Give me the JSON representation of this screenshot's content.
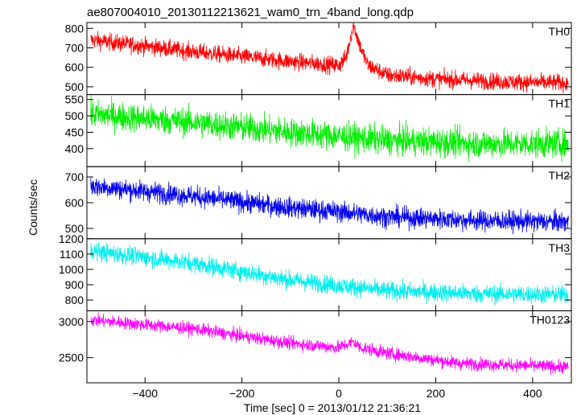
{
  "chart_data": {
    "type": "line",
    "title": "ae807004010_20130112213621_wam0_trn_4band_long.qdp",
    "xlabel": "Time [sec] 0 = 2013/01/12 21:36:21",
    "ylabel": "Counts/sec",
    "xlim": [
      -520,
      480
    ],
    "xticks": [
      "−400",
      "−200",
      "0",
      "200",
      "400"
    ],
    "xtick_values": [
      -400,
      -200,
      0,
      200,
      400
    ],
    "grid": false,
    "panels": [
      {
        "name": "TH0",
        "color": "#ff0000",
        "ylim": [
          460,
          830
        ],
        "yticks": [
          "500",
          "600",
          "700",
          "800"
        ],
        "ytick_values": [
          500,
          600,
          700,
          800
        ],
        "trend": [
          [
            -510,
            740
          ],
          [
            -300,
            680
          ],
          [
            -100,
            630
          ],
          [
            0,
            610
          ],
          [
            15,
            650
          ],
          [
            30,
            820
          ],
          [
            45,
            700
          ],
          [
            60,
            610
          ],
          [
            100,
            560
          ],
          [
            200,
            540
          ],
          [
            350,
            525
          ],
          [
            470,
            520
          ]
        ],
        "noise": 22
      },
      {
        "name": "TH1",
        "color": "#00ee00",
        "ylim": [
          345,
          565
        ],
        "yticks": [
          "400",
          "450",
          "500",
          "550"
        ],
        "ytick_values": [
          400,
          450,
          500,
          550
        ],
        "trend": [
          [
            -510,
            505
          ],
          [
            -300,
            480
          ],
          [
            -100,
            450
          ],
          [
            100,
            425
          ],
          [
            300,
            415
          ],
          [
            470,
            415
          ]
        ],
        "noise": 22
      },
      {
        "name": "TH2",
        "color": "#0000ee",
        "ylim": [
          460,
          740
        ],
        "yticks": [
          "500",
          "600",
          "700"
        ],
        "ytick_values": [
          500,
          600,
          700
        ],
        "trend": [
          [
            -510,
            665
          ],
          [
            -300,
            625
          ],
          [
            -100,
            580
          ],
          [
            0,
            565
          ],
          [
            100,
            545
          ],
          [
            300,
            530
          ],
          [
            470,
            525
          ]
        ],
        "noise": 20
      },
      {
        "name": "TH3",
        "color": "#00eeee",
        "ylim": [
          730,
          1200
        ],
        "yticks": [
          "800",
          "900",
          "1000",
          "1100",
          "1200"
        ],
        "ytick_values": [
          800,
          900,
          1000,
          1100,
          1200
        ],
        "trend": [
          [
            -510,
            1120
          ],
          [
            -300,
            1040
          ],
          [
            -100,
            930
          ],
          [
            100,
            860
          ],
          [
            300,
            840
          ],
          [
            470,
            835
          ]
        ],
        "noise": 30
      },
      {
        "name": "TH0123",
        "color": "#ff00ff",
        "ylim": [
          2150,
          3150
        ],
        "yticks": [
          "2500",
          "3000"
        ],
        "ytick_values": [
          2500,
          3000
        ],
        "trend": [
          [
            -510,
            3020
          ],
          [
            -300,
            2900
          ],
          [
            -100,
            2700
          ],
          [
            0,
            2640
          ],
          [
            20,
            2690
          ],
          [
            30,
            2720
          ],
          [
            45,
            2640
          ],
          [
            100,
            2560
          ],
          [
            250,
            2420
          ],
          [
            470,
            2370
          ]
        ],
        "noise": 45
      }
    ]
  }
}
